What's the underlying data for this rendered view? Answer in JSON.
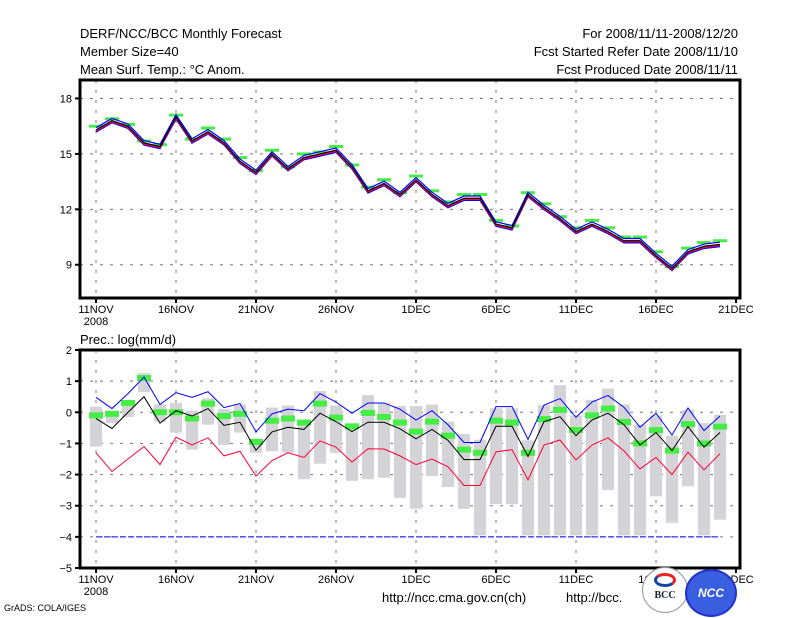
{
  "header": {
    "left": [
      "DERF/NCC/BCC Monthly Forecast",
      "Member Size=40",
      "Mean Surf. Temp.: °C Anom."
    ],
    "right": [
      "For 2008/11/11-2008/12/20",
      "Fcst Started Refer Date 2008/11/10",
      "Fcst Produced Date 2008/11/11"
    ]
  },
  "footer": {
    "grads": "GrADS: COLA/IGES",
    "url1": "http://ncc.cma.gov.cn(ch)",
    "url2": "http://bcc.",
    "logo_bcc": "BCC",
    "logo_ncc": "NCC"
  },
  "colors": {
    "mean": "#000000",
    "upper": "#0000ff",
    "lower": "#ff0033",
    "marker": "#44ee44",
    "range": "#d4d4d8"
  },
  "chart_data": [
    {
      "type": "line",
      "title": "Mean Surf. Temp.: °C Anom.",
      "ylim": [
        7.2,
        19.0
      ],
      "yticks": [
        9,
        12,
        15,
        18
      ],
      "xticks": [
        "11NOV",
        "16NOV",
        "21NOV",
        "26NOV",
        "1DEC",
        "6DEC",
        "11DEC",
        "16DEC",
        "21DEC"
      ],
      "xtick_year": "2008",
      "days": 40,
      "spread": 0.12,
      "mean": [
        16.3,
        16.8,
        16.5,
        15.6,
        15.4,
        17.0,
        15.7,
        16.2,
        15.6,
        14.6,
        14.0,
        15.0,
        14.2,
        14.8,
        15.0,
        15.2,
        14.3,
        13.0,
        13.4,
        12.8,
        13.6,
        12.8,
        12.2,
        12.6,
        12.6,
        11.2,
        11.0,
        12.8,
        12.1,
        11.5,
        10.8,
        11.2,
        10.8,
        10.3,
        10.3,
        9.5,
        8.8,
        9.7,
        10.0,
        10.1
      ],
      "markers": [
        16.5,
        16.9,
        16.6,
        15.7,
        15.5,
        17.1,
        15.8,
        16.4,
        15.8,
        14.8,
        14.1,
        15.2,
        14.3,
        15.0,
        15.1,
        15.4,
        14.4,
        13.2,
        13.6,
        12.9,
        13.8,
        13.0,
        12.4,
        12.8,
        12.8,
        11.4,
        11.1,
        12.9,
        12.3,
        11.6,
        11.0,
        11.4,
        11.0,
        10.5,
        10.5,
        9.7,
        8.9,
        9.9,
        10.2,
        10.3
      ]
    },
    {
      "type": "line",
      "title": "Prec.: log(mm/d)",
      "ylim": [
        -5,
        2
      ],
      "yticks": [
        -5,
        -4,
        -3,
        -2,
        -1,
        0,
        1,
        2
      ],
      "xticks": [
        "11NOV",
        "16NOV",
        "21NOV",
        "26NOV",
        "1DEC",
        "6DEC",
        "11DEC",
        "16DEC",
        "21DEC"
      ],
      "xtick_year": "2008",
      "days": 40,
      "baseline": -4,
      "series": [
        {
          "name": "upper",
          "values": [
            0.48,
            0.12,
            0.6,
            1.13,
            0.25,
            0.63,
            0.48,
            0.66,
            0.15,
            0.28,
            -0.63,
            -0.05,
            0.1,
            0.05,
            0.6,
            0.33,
            -0.03,
            0.3,
            0.3,
            0.1,
            -0.25,
            0.05,
            -0.4,
            -0.97,
            -0.97,
            0.18,
            0.18,
            -0.87,
            0.23,
            0.44,
            -0.16,
            0.33,
            0.54,
            0.16,
            -0.48,
            -0.03,
            -0.73,
            0.14,
            -0.59,
            -0.12
          ]
        },
        {
          "name": "mean",
          "values": [
            -0.2,
            -0.52,
            0.0,
            0.5,
            -0.35,
            0.05,
            -0.12,
            0.12,
            -0.42,
            -0.32,
            -1.22,
            -0.63,
            -0.48,
            -0.55,
            -0.03,
            -0.3,
            -0.62,
            -0.32,
            -0.32,
            -0.53,
            -0.85,
            -0.55,
            -0.9,
            -1.52,
            -1.52,
            -0.45,
            -0.45,
            -1.42,
            -0.3,
            -0.14,
            -0.75,
            -0.25,
            -0.03,
            -0.4,
            -1.05,
            -0.65,
            -1.23,
            -0.46,
            -1.12,
            -0.65
          ]
        },
        {
          "name": "lower",
          "values": [
            -1.3,
            -1.9,
            -1.5,
            -1.1,
            -1.68,
            -0.8,
            -1.05,
            -0.82,
            -1.4,
            -1.25,
            -2.05,
            -1.55,
            -1.3,
            -1.45,
            -0.92,
            -1.12,
            -1.6,
            -1.17,
            -1.18,
            -1.4,
            -1.68,
            -1.5,
            -1.75,
            -2.35,
            -2.35,
            -1.27,
            -1.2,
            -2.17,
            -1.05,
            -0.89,
            -1.53,
            -1.05,
            -0.82,
            -1.24,
            -1.82,
            -1.45,
            -2.0,
            -1.28,
            -1.85,
            -1.33
          ]
        }
      ],
      "markers": [
        -0.1,
        -0.05,
        0.3,
        1.1,
        0.0,
        0.0,
        -0.2,
        0.28,
        -0.12,
        -0.05,
        -0.95,
        -0.27,
        -0.2,
        -0.33,
        0.28,
        -0.17,
        -0.45,
        -0.02,
        -0.15,
        -0.33,
        -0.62,
        -0.3,
        -0.75,
        -1.2,
        -1.3,
        -0.27,
        -0.33,
        -1.3,
        -0.22,
        0.08,
        -0.57,
        -0.1,
        0.12,
        -0.31,
        -1.0,
        -0.57,
        -1.23,
        -0.38,
        -1.0,
        -0.46
      ],
      "range_max": [
        0.18,
        0.0,
        0.3,
        1.25,
        0.25,
        0.3,
        0.05,
        0.45,
        0.1,
        0.25,
        -0.85,
        0.15,
        0.22,
        -0.3,
        0.68,
        0.22,
        -0.4,
        0.55,
        0.3,
        0.2,
        0.2,
        0.25,
        -0.3,
        -0.7,
        -0.88,
        0.13,
        0.13,
        -0.9,
        0.23,
        0.87,
        -0.1,
        0.4,
        0.76,
        0.25,
        -0.4,
        -0.1,
        -0.75,
        0.08,
        -0.35,
        -0.08
      ],
      "range_min": [
        -1.1,
        -0.35,
        -0.15,
        0.65,
        -0.3,
        -0.65,
        -1.2,
        -0.4,
        -1.05,
        -0.65,
        -1.3,
        -1.25,
        -1.3,
        -2.15,
        -1.65,
        -1.3,
        -2.2,
        -2.15,
        -2.1,
        -2.75,
        -3.1,
        -2.05,
        -2.4,
        -3.1,
        -3.95,
        -2.95,
        -2.95,
        -3.95,
        -3.95,
        -3.95,
        -3.95,
        -3.95,
        -2.5,
        -3.95,
        -3.95,
        -2.7,
        -3.55,
        -2.37,
        -3.95,
        -3.45
      ]
    }
  ]
}
